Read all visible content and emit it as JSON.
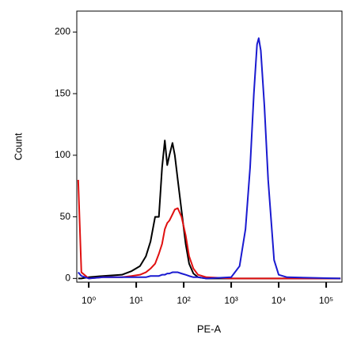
{
  "chart_data": {
    "type": "line",
    "xlabel": "PE-A",
    "ylabel": "Count",
    "log_x": true,
    "xlim": [
      0.56,
      215000
    ],
    "xticks": [
      {
        "value": 1,
        "label": "10⁰"
      },
      {
        "value": 10,
        "label": "10¹"
      },
      {
        "value": 100,
        "label": "10²"
      },
      {
        "value": 1000,
        "label": "10³"
      },
      {
        "value": 10000,
        "label": "10⁴"
      },
      {
        "value": 100000,
        "label": "10⁵"
      }
    ],
    "ylim": [
      -3,
      217
    ],
    "yticks": [
      0,
      50,
      100,
      150,
      200
    ],
    "x": [
      0.6,
      0.7,
      1,
      2,
      5,
      8,
      12,
      16,
      20,
      25,
      30,
      35,
      40,
      45,
      50,
      58,
      65,
      75,
      90,
      110,
      130,
      160,
      200,
      300,
      1000,
      1500,
      2000,
      2500,
      3000,
      3500,
      3800,
      4200,
      5000,
      6000,
      8000,
      10000,
      15000,
      200000
    ],
    "series": [
      {
        "color": "#000000",
        "values": [
          0,
          0,
          1,
          2,
          3,
          6,
          10,
          18,
          30,
          50,
          50,
          90,
          112,
          92,
          100,
          110,
          100,
          80,
          55,
          28,
          12,
          4,
          1,
          0,
          0,
          0,
          0,
          0,
          0,
          0,
          0,
          0,
          0,
          0,
          0,
          0,
          0,
          0
        ]
      },
      {
        "color": "#e01010",
        "values": [
          80,
          5,
          0,
          1,
          1,
          2,
          3,
          5,
          8,
          12,
          20,
          28,
          40,
          45,
          47,
          52,
          56,
          57,
          50,
          35,
          18,
          8,
          3,
          1,
          0,
          0,
          0,
          0,
          0,
          0,
          0,
          0,
          0,
          0,
          0,
          0,
          0,
          0
        ]
      },
      {
        "color": "#1a1ad0",
        "values": [
          5,
          2,
          0,
          1,
          1,
          1,
          1,
          1,
          2,
          2,
          2,
          3,
          3,
          4,
          4,
          5,
          5,
          5,
          4,
          3,
          2,
          1,
          1,
          0,
          1,
          10,
          40,
          90,
          150,
          190,
          195,
          185,
          140,
          80,
          15,
          3,
          1,
          0
        ]
      }
    ]
  }
}
